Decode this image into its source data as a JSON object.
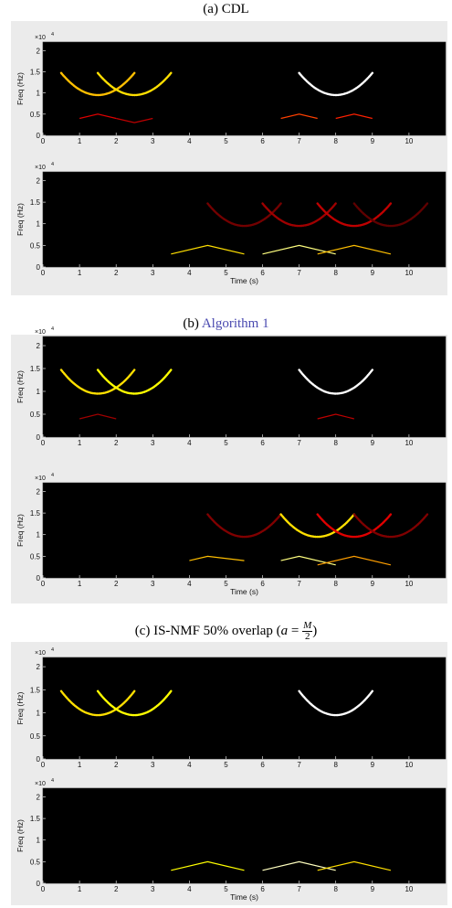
{
  "captions": {
    "a": "(a) CDL",
    "b_prefix": "(b)",
    "b_link": "Algorithm 1",
    "c_prefix": "(c) IS-NMF 50% overlap (",
    "c_var": "a",
    "c_eq": "=",
    "c_num": "M",
    "c_den": "2",
    "c_suffix": ")"
  },
  "axis_text": {
    "exponent": "×10",
    "exponent_power": "4",
    "ylabel": "Freq (Hz)",
    "xlabel": "Time (s)"
  },
  "colors": {
    "background": "#000000",
    "panel": "#ebebeb",
    "colormap": "hot"
  },
  "chart_data": [
    {
      "type": "heatmap",
      "panel": "a",
      "plot": "top",
      "xlim": [
        0,
        11
      ],
      "ylim": [
        0,
        2.2
      ],
      "xticks": [
        "0",
        "1",
        "2",
        "3",
        "4",
        "5",
        "6",
        "7",
        "8",
        "9",
        "10"
      ],
      "yticks": [
        "0",
        "0.5",
        "1",
        "1.5",
        "2"
      ],
      "ylabel": "Freq (Hz)",
      "xlabel": "",
      "chirps_high": [
        {
          "center": 1.5,
          "intensity": 0.7
        },
        {
          "center": 2.5,
          "intensity": 0.75
        },
        {
          "center": 8,
          "intensity": 1.0
        }
      ],
      "lines_low": [
        {
          "pts": [
            [
              1,
              0.4
            ],
            [
              1.5,
              0.5
            ],
            [
              2,
              0.4
            ]
          ],
          "i": 0.35
        },
        {
          "pts": [
            [
              2,
              0.4
            ],
            [
              2.5,
              0.3
            ],
            [
              3,
              0.4
            ]
          ],
          "i": 0.3
        },
        {
          "pts": [
            [
              6.5,
              0.4
            ],
            [
              7,
              0.5
            ],
            [
              7.5,
              0.4
            ]
          ],
          "i": 0.5
        },
        {
          "pts": [
            [
              8,
              0.4
            ],
            [
              8.5,
              0.5
            ],
            [
              9,
              0.4
            ]
          ],
          "i": 0.45
        }
      ]
    },
    {
      "type": "heatmap",
      "panel": "a",
      "plot": "bottom",
      "xlim": [
        0,
        11
      ],
      "ylim": [
        0,
        2.2
      ],
      "xticks": [
        "0",
        "1",
        "2",
        "3",
        "4",
        "5",
        "6",
        "7",
        "8",
        "9",
        "10"
      ],
      "yticks": [
        "0",
        "0.5",
        "1",
        "1.5",
        "2"
      ],
      "ylabel": "Freq (Hz)",
      "xlabel": "Time (s)",
      "chirps_high": [
        {
          "center": 5.5,
          "intensity": 0.18
        },
        {
          "center": 7,
          "intensity": 0.25
        },
        {
          "center": 8.5,
          "intensity": 0.3
        },
        {
          "center": 9.5,
          "intensity": 0.15
        }
      ],
      "lines_low": [
        {
          "pts": [
            [
              3.5,
              0.3
            ],
            [
              4.5,
              0.5
            ],
            [
              5.5,
              0.3
            ]
          ],
          "i": 0.75
        },
        {
          "pts": [
            [
              6,
              0.3
            ],
            [
              7,
              0.5
            ],
            [
              8,
              0.3
            ]
          ],
          "i": 0.9
        },
        {
          "pts": [
            [
              7.5,
              0.3
            ],
            [
              8.5,
              0.5
            ],
            [
              9.5,
              0.3
            ]
          ],
          "i": 0.7
        }
      ]
    },
    {
      "type": "heatmap",
      "panel": "b",
      "plot": "top",
      "xlim": [
        0,
        11
      ],
      "ylim": [
        0,
        2.2
      ],
      "xticks": [
        "0",
        "1",
        "2",
        "3",
        "4",
        "5",
        "6",
        "7",
        "8",
        "9",
        "10"
      ],
      "yticks": [
        "0",
        "0.5",
        "1",
        "1.5",
        "2"
      ],
      "ylabel": "Freq (Hz)",
      "xlabel": "",
      "chirps_high": [
        {
          "center": 1.5,
          "intensity": 0.75
        },
        {
          "center": 2.5,
          "intensity": 0.8
        },
        {
          "center": 8,
          "intensity": 1.0
        }
      ],
      "lines_low": [
        {
          "pts": [
            [
              1,
              0.4
            ],
            [
              1.5,
              0.5
            ],
            [
              2,
              0.4
            ]
          ],
          "i": 0.25
        },
        {
          "pts": [
            [
              7.5,
              0.4
            ],
            [
              8,
              0.5
            ],
            [
              8.5,
              0.4
            ]
          ],
          "i": 0.3
        }
      ]
    },
    {
      "type": "heatmap",
      "panel": "b",
      "plot": "bottom",
      "xlim": [
        0,
        11
      ],
      "ylim": [
        0,
        2.2
      ],
      "xticks": [
        "0",
        "1",
        "2",
        "3",
        "4",
        "5",
        "6",
        "7",
        "8",
        "9",
        "10"
      ],
      "yticks": [
        "0",
        "0.5",
        "1",
        "1.5",
        "2"
      ],
      "ylabel": "Freq (Hz)",
      "xlabel": "Time (s)",
      "chirps_high": [
        {
          "center": 5.5,
          "intensity": 0.2
        },
        {
          "center": 7.5,
          "intensity": 0.75
        },
        {
          "center": 8.5,
          "intensity": 0.35
        },
        {
          "center": 9.5,
          "intensity": 0.2
        }
      ],
      "lines_low": [
        {
          "pts": [
            [
              4,
              0.4
            ],
            [
              4.5,
              0.5
            ],
            [
              5.5,
              0.4
            ]
          ],
          "i": 0.7
        },
        {
          "pts": [
            [
              6.5,
              0.4
            ],
            [
              7,
              0.5
            ],
            [
              8,
              0.3
            ]
          ],
          "i": 0.9
        },
        {
          "pts": [
            [
              7.5,
              0.3
            ],
            [
              8.5,
              0.5
            ],
            [
              9.5,
              0.3
            ]
          ],
          "i": 0.65
        }
      ]
    },
    {
      "type": "heatmap",
      "panel": "c",
      "plot": "top",
      "xlim": [
        0,
        11
      ],
      "ylim": [
        0,
        2.2
      ],
      "xticks": [
        "0",
        "1",
        "2",
        "3",
        "4",
        "5",
        "6",
        "7",
        "8",
        "9",
        "10"
      ],
      "yticks": [
        "0",
        "0.5",
        "1",
        "1.5",
        "2"
      ],
      "ylabel": "Freq (Hz)",
      "xlabel": "",
      "chirps_high": [
        {
          "center": 1.5,
          "intensity": 0.75
        },
        {
          "center": 2.5,
          "intensity": 0.8
        },
        {
          "center": 8,
          "intensity": 1.0
        }
      ],
      "lines_low": []
    },
    {
      "type": "heatmap",
      "panel": "c",
      "plot": "bottom",
      "xlim": [
        0,
        11
      ],
      "ylim": [
        0,
        2.2
      ],
      "xticks": [
        "0",
        "1",
        "2",
        "3",
        "4",
        "5",
        "6",
        "7",
        "8",
        "9",
        "10"
      ],
      "yticks": [
        "0",
        "0.5",
        "1",
        "1.5",
        "2"
      ],
      "ylabel": "Freq (Hz)",
      "xlabel": "Time (s)",
      "chirps_high": [],
      "lines_low": [
        {
          "pts": [
            [
              3.5,
              0.3
            ],
            [
              4.5,
              0.5
            ],
            [
              5.5,
              0.3
            ]
          ],
          "i": 0.8
        },
        {
          "pts": [
            [
              6,
              0.3
            ],
            [
              7,
              0.5
            ],
            [
              8,
              0.3
            ]
          ],
          "i": 0.95
        },
        {
          "pts": [
            [
              7.5,
              0.3
            ],
            [
              8.5,
              0.5
            ],
            [
              9.5,
              0.3
            ]
          ],
          "i": 0.75
        }
      ]
    }
  ]
}
